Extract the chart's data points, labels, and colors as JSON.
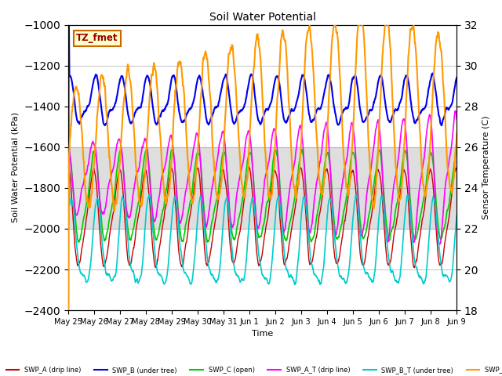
{
  "title": "Soil Water Potential",
  "ylabel_left": "Soil Water Potential (kPa)",
  "ylabel_right": "Sensor Temperature (C)",
  "xlabel": "Time",
  "ylim_left": [
    -2400,
    -1000
  ],
  "ylim_right": [
    18,
    32
  ],
  "yticks_left": [
    -2400,
    -2200,
    -2000,
    -1800,
    -1600,
    -1400,
    -1200,
    -1000
  ],
  "yticks_right": [
    18,
    20,
    22,
    24,
    26,
    28,
    30,
    32
  ],
  "shaded_region": [
    -2000,
    -1600
  ],
  "box_label": "TZ_fmet",
  "series": {
    "SWP_A_drip": {
      "color": "#cc0000",
      "label": "SWP_A (drip line)"
    },
    "SWP_B_under": {
      "color": "#0000ee",
      "label": "SWP_B (under tree)"
    },
    "SWP_C_open": {
      "color": "#00cc00",
      "label": "SWP_C (open)"
    },
    "SWP_A_T_drip": {
      "color": "#ff00ff",
      "label": "SWP_A_T (drip line)"
    },
    "SWP_B_T_under": {
      "color": "#00cccc",
      "label": "SWP_B_T (under tree)"
    },
    "SWP_C_T": {
      "color": "#ff9900",
      "label": "SWP_C_T (open)"
    }
  }
}
